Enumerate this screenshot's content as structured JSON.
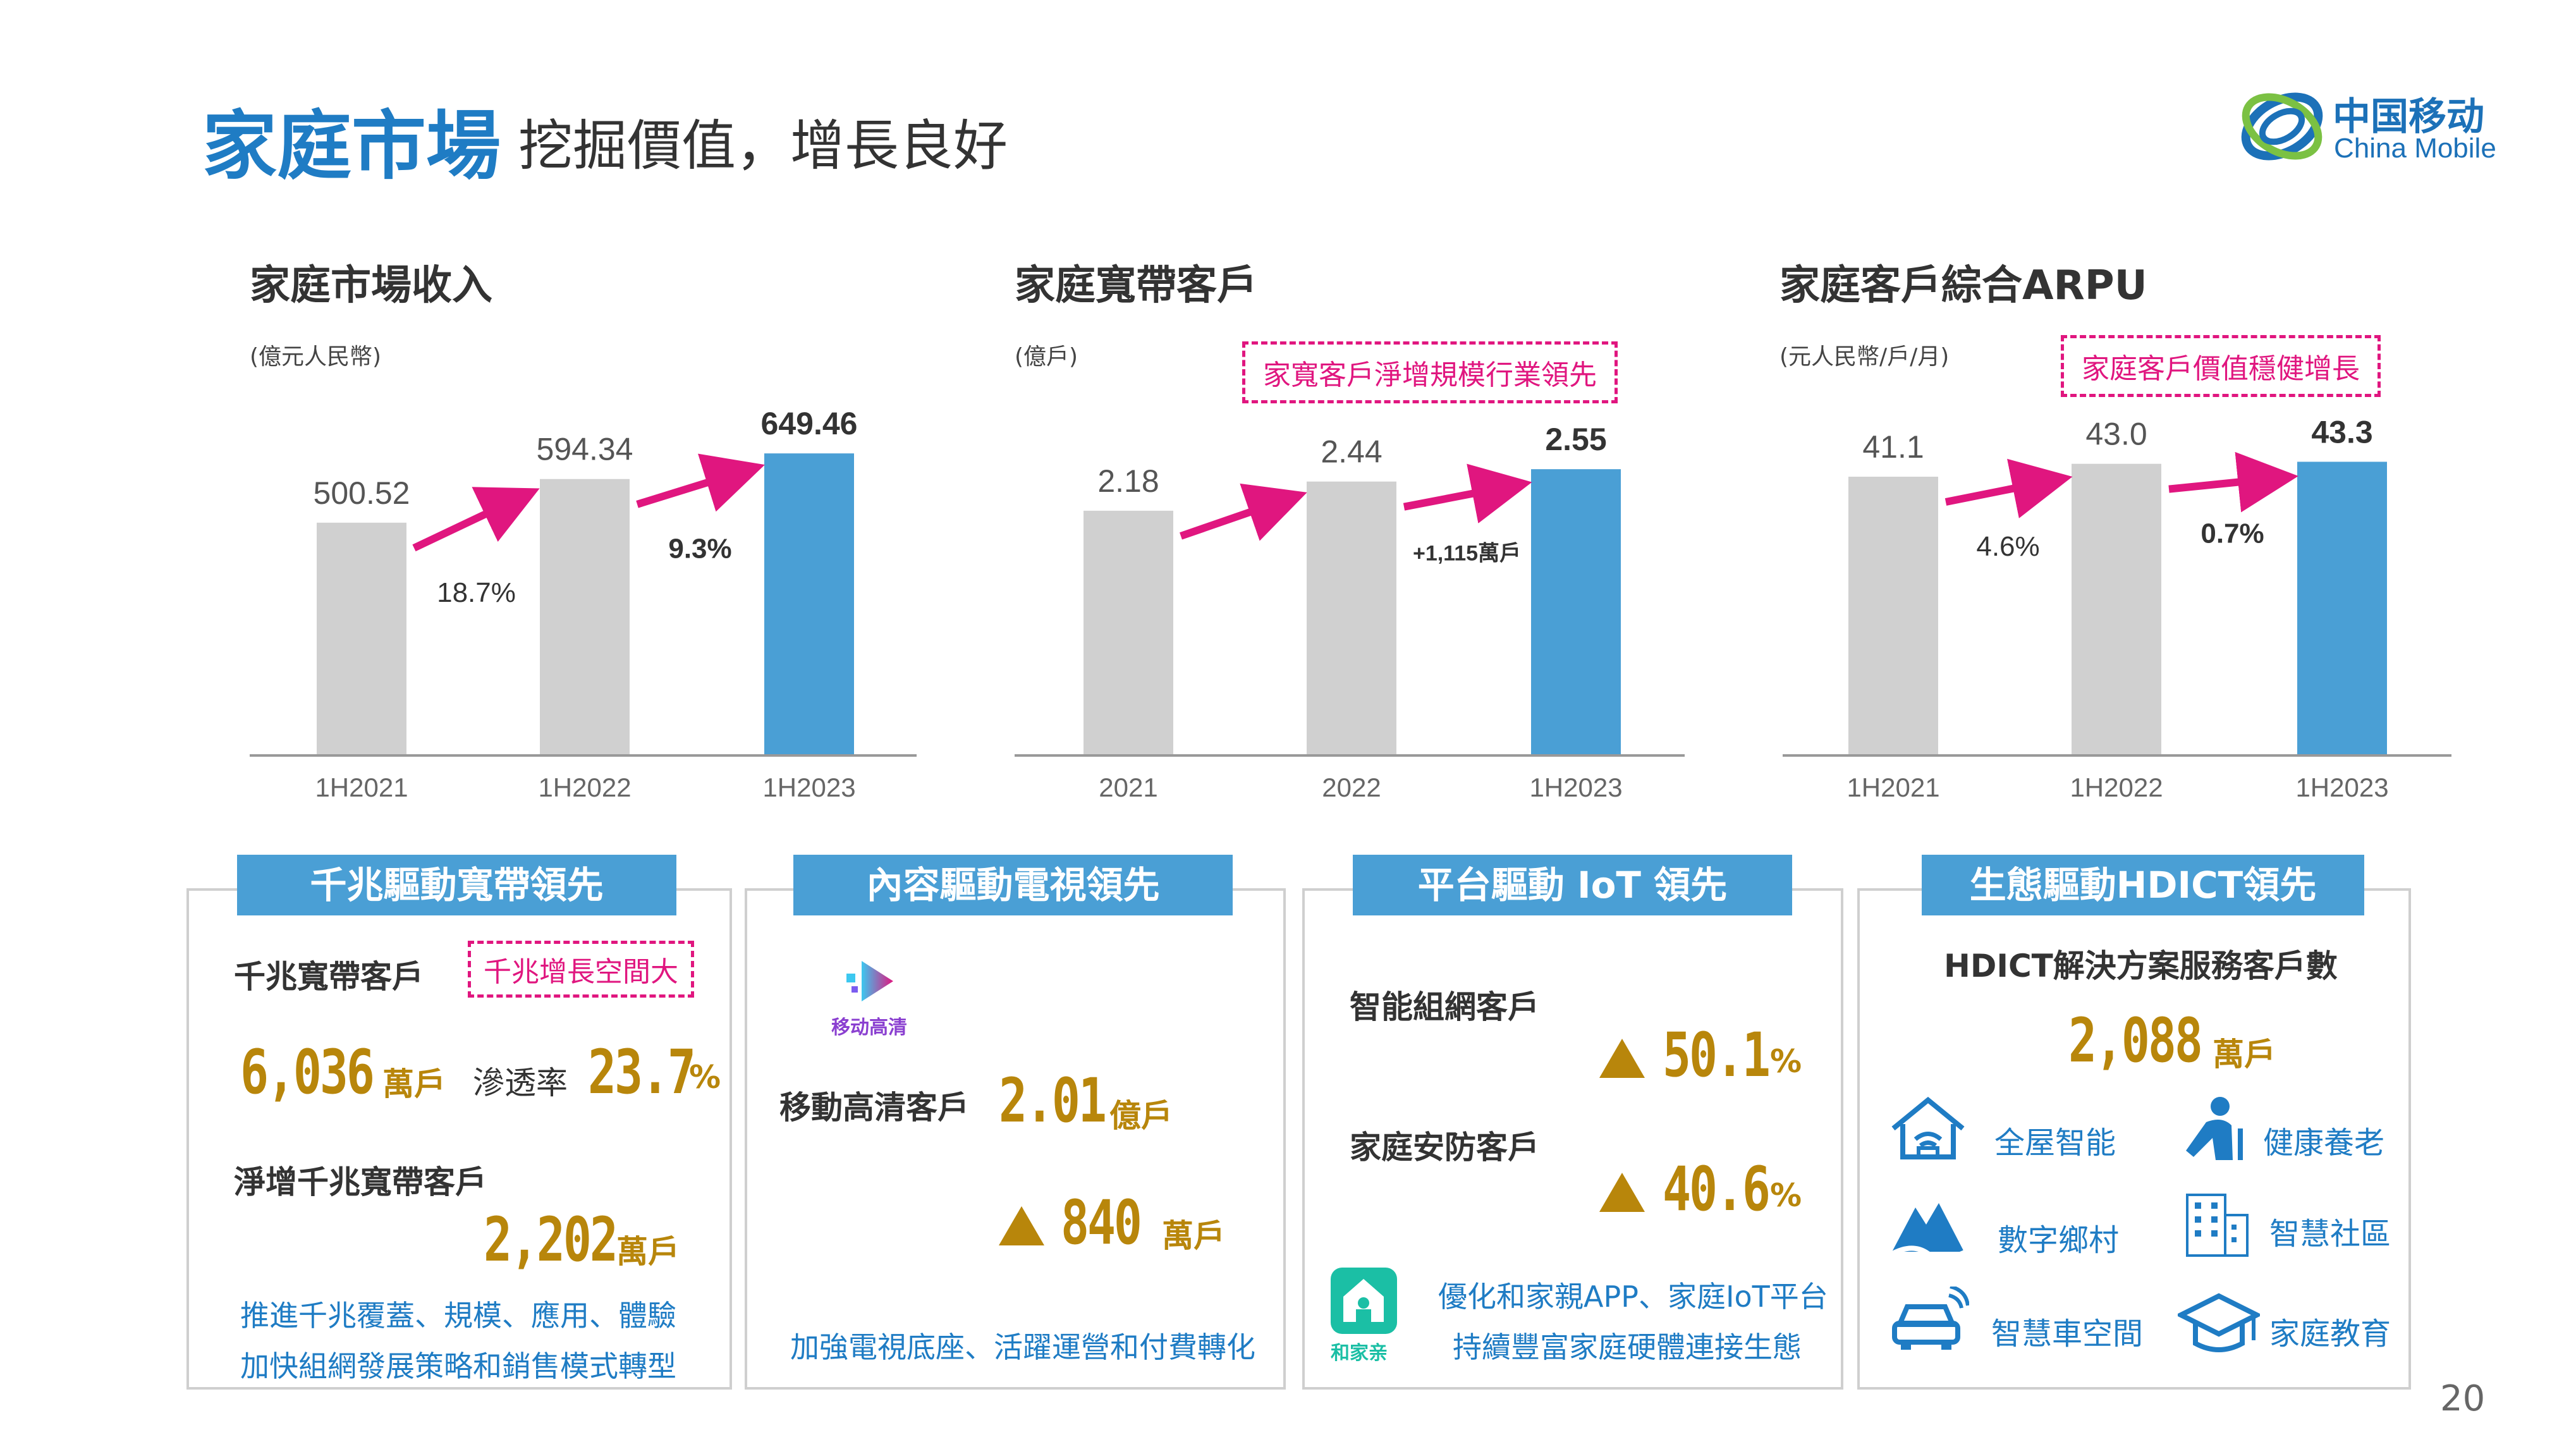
{
  "header": {
    "title": "家庭市場",
    "subtitle": "挖掘價值，增長良好",
    "logo_cn": "中国移动",
    "logo_en": "China Mobile"
  },
  "page_number": "20",
  "charts": [
    {
      "title": "家庭市場收入",
      "unit": "(億元人民幣)",
      "callout": "",
      "growth_labels": [
        "18.7%",
        "9.3%"
      ]
    },
    {
      "title": "家庭寬帶客戶",
      "unit": "(億戶)",
      "callout": "家寬客戶淨增規模行業領先",
      "growth_labels": [
        "",
        "+1,115萬戶"
      ]
    },
    {
      "title": "家庭客戶綜合ARPU",
      "unit": "(元人民幣/戶/月)",
      "callout": "家庭客戶價值穩健增長",
      "growth_labels": [
        "4.6%",
        "0.7%"
      ]
    }
  ],
  "chart_data": [
    {
      "type": "bar",
      "title": "家庭市場收入",
      "ylabel": "(億元人民幣)",
      "categories": [
        "1H2021",
        "1H2022",
        "1H2023"
      ],
      "values": [
        500.52,
        594.34,
        649.46
      ],
      "labels": [
        "500.52",
        "594.34",
        "649.46"
      ],
      "ylim": [
        0,
        700
      ],
      "colors": [
        "#d0d0d0",
        "#d0d0d0",
        "#4a9fd5"
      ]
    },
    {
      "type": "bar",
      "title": "家庭寬帶客戶",
      "ylabel": "(億戶)",
      "categories": [
        "2021",
        "2022",
        "1H2023"
      ],
      "values": [
        2.18,
        2.44,
        2.55
      ],
      "labels": [
        "2.18",
        "2.44",
        "2.55"
      ],
      "ylim": [
        0,
        2.9
      ],
      "colors": [
        "#d0d0d0",
        "#d0d0d0",
        "#4a9fd5"
      ]
    },
    {
      "type": "bar",
      "title": "家庭客戶綜合ARPU",
      "ylabel": "(元人民幣/戶/月)",
      "categories": [
        "1H2021",
        "1H2022",
        "1H2023"
      ],
      "values": [
        41.1,
        43.0,
        43.3
      ],
      "labels": [
        "41.1",
        "43.0",
        "43.3"
      ],
      "ylim": [
        0,
        48
      ],
      "colors": [
        "#d0d0d0",
        "#d0d0d0",
        "#4a9fd5"
      ]
    }
  ],
  "panels": {
    "gigabit": {
      "heading": "千兆驅動寬帶領先",
      "label1": "千兆寬帶客戶",
      "callout": "千兆增長空間大",
      "value1": "6,036",
      "value1_unit": "萬戶",
      "penetration_label": "滲透率",
      "penetration_value": "23.7",
      "penetration_unit": "%",
      "label2": "淨增千兆寬帶客戶",
      "value2": "2,202",
      "value2_unit": "萬戶",
      "note1": "推進千兆覆蓋、規模、應用、體驗",
      "note2": "加快組網發展策略和銷售模式轉型"
    },
    "tv": {
      "heading": "內容驅動電視領先",
      "app_name": "移动高清",
      "label": "移動高清客戶",
      "value": "2.01",
      "value_unit": "億戶",
      "increase": "840",
      "increase_unit": "萬戶",
      "note": "加強電視底座、活躍運營和付費轉化"
    },
    "iot": {
      "heading": "平台驅動 IoT 領先",
      "label1": "智能組網客戶",
      "value1": "50.1",
      "value1_unit": "%",
      "label2": "家庭安防客戶",
      "value2": "40.6",
      "value2_unit": "%",
      "app_name": "和家亲",
      "note1": "優化和家親APP、家庭IoT平台",
      "note2": "持續豐富家庭硬體連接生態"
    },
    "hdict": {
      "heading": "生態驅動HDICT領先",
      "label": "HDICT解決方案服務客戶數",
      "value": "2,088",
      "value_unit": "萬戶",
      "items": [
        {
          "label": "全屋智能",
          "icon": "smart-home-icon"
        },
        {
          "label": "健康養老",
          "icon": "elderly-care-icon"
        },
        {
          "label": "數字鄉村",
          "icon": "village-icon"
        },
        {
          "label": "智慧社區",
          "icon": "community-icon"
        },
        {
          "label": "智慧車空間",
          "icon": "car-icon"
        },
        {
          "label": "家庭教育",
          "icon": "education-icon"
        }
      ]
    }
  }
}
